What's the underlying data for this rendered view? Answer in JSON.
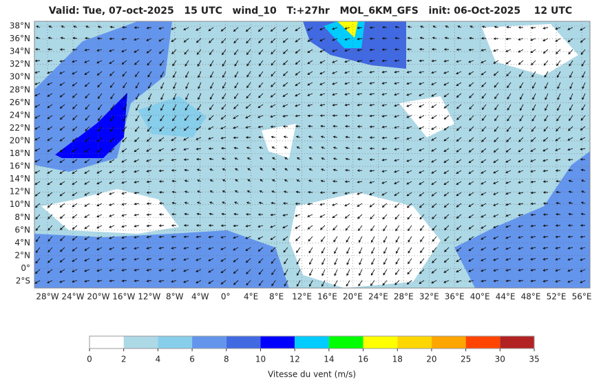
{
  "title": "Valid: Tue, 07-oct-2025   15 UTC   wind_10   T:+27hr   MOL_6KM_GFS   init: 06-Oct-2025    12 UTC",
  "lat_labels": [
    "38°N",
    "36°N",
    "34°N",
    "32°N",
    "30°N",
    "28°N",
    "26°N",
    "24°N",
    "22°N",
    "20°N",
    "18°N",
    "16°N",
    "14°N",
    "12°N",
    "10°N",
    "8°N",
    "6°N",
    "4°N",
    "2°N",
    "0°",
    "2°S"
  ],
  "lon_labels": [
    "28°W",
    "24°W",
    "20°W",
    "16°W",
    "12°W",
    "8°W",
    "4°W",
    "0°",
    "4°E",
    "8°E",
    "12°E",
    "16°E",
    "20°E",
    "24°E",
    "28°E",
    "32°E",
    "36°E",
    "40°E",
    "44°E",
    "48°E",
    "52°E",
    "56°E"
  ],
  "colorbar": {
    "ticks": [
      "0",
      "2",
      "4",
      "6",
      "8",
      "10",
      "12",
      "14",
      "16",
      "18",
      "20",
      "25",
      "30",
      "35"
    ],
    "colors": [
      "#ffffff",
      "#add8e6",
      "#87ceeb",
      "#6495ed",
      "#4169e1",
      "#0000ff",
      "#00ccff",
      "#00ff00",
      "#ffff00",
      "#ffd700",
      "#ffa500",
      "#ff4500",
      "#b22222"
    ],
    "label": "Vitesse du vent (m/s)"
  }
}
